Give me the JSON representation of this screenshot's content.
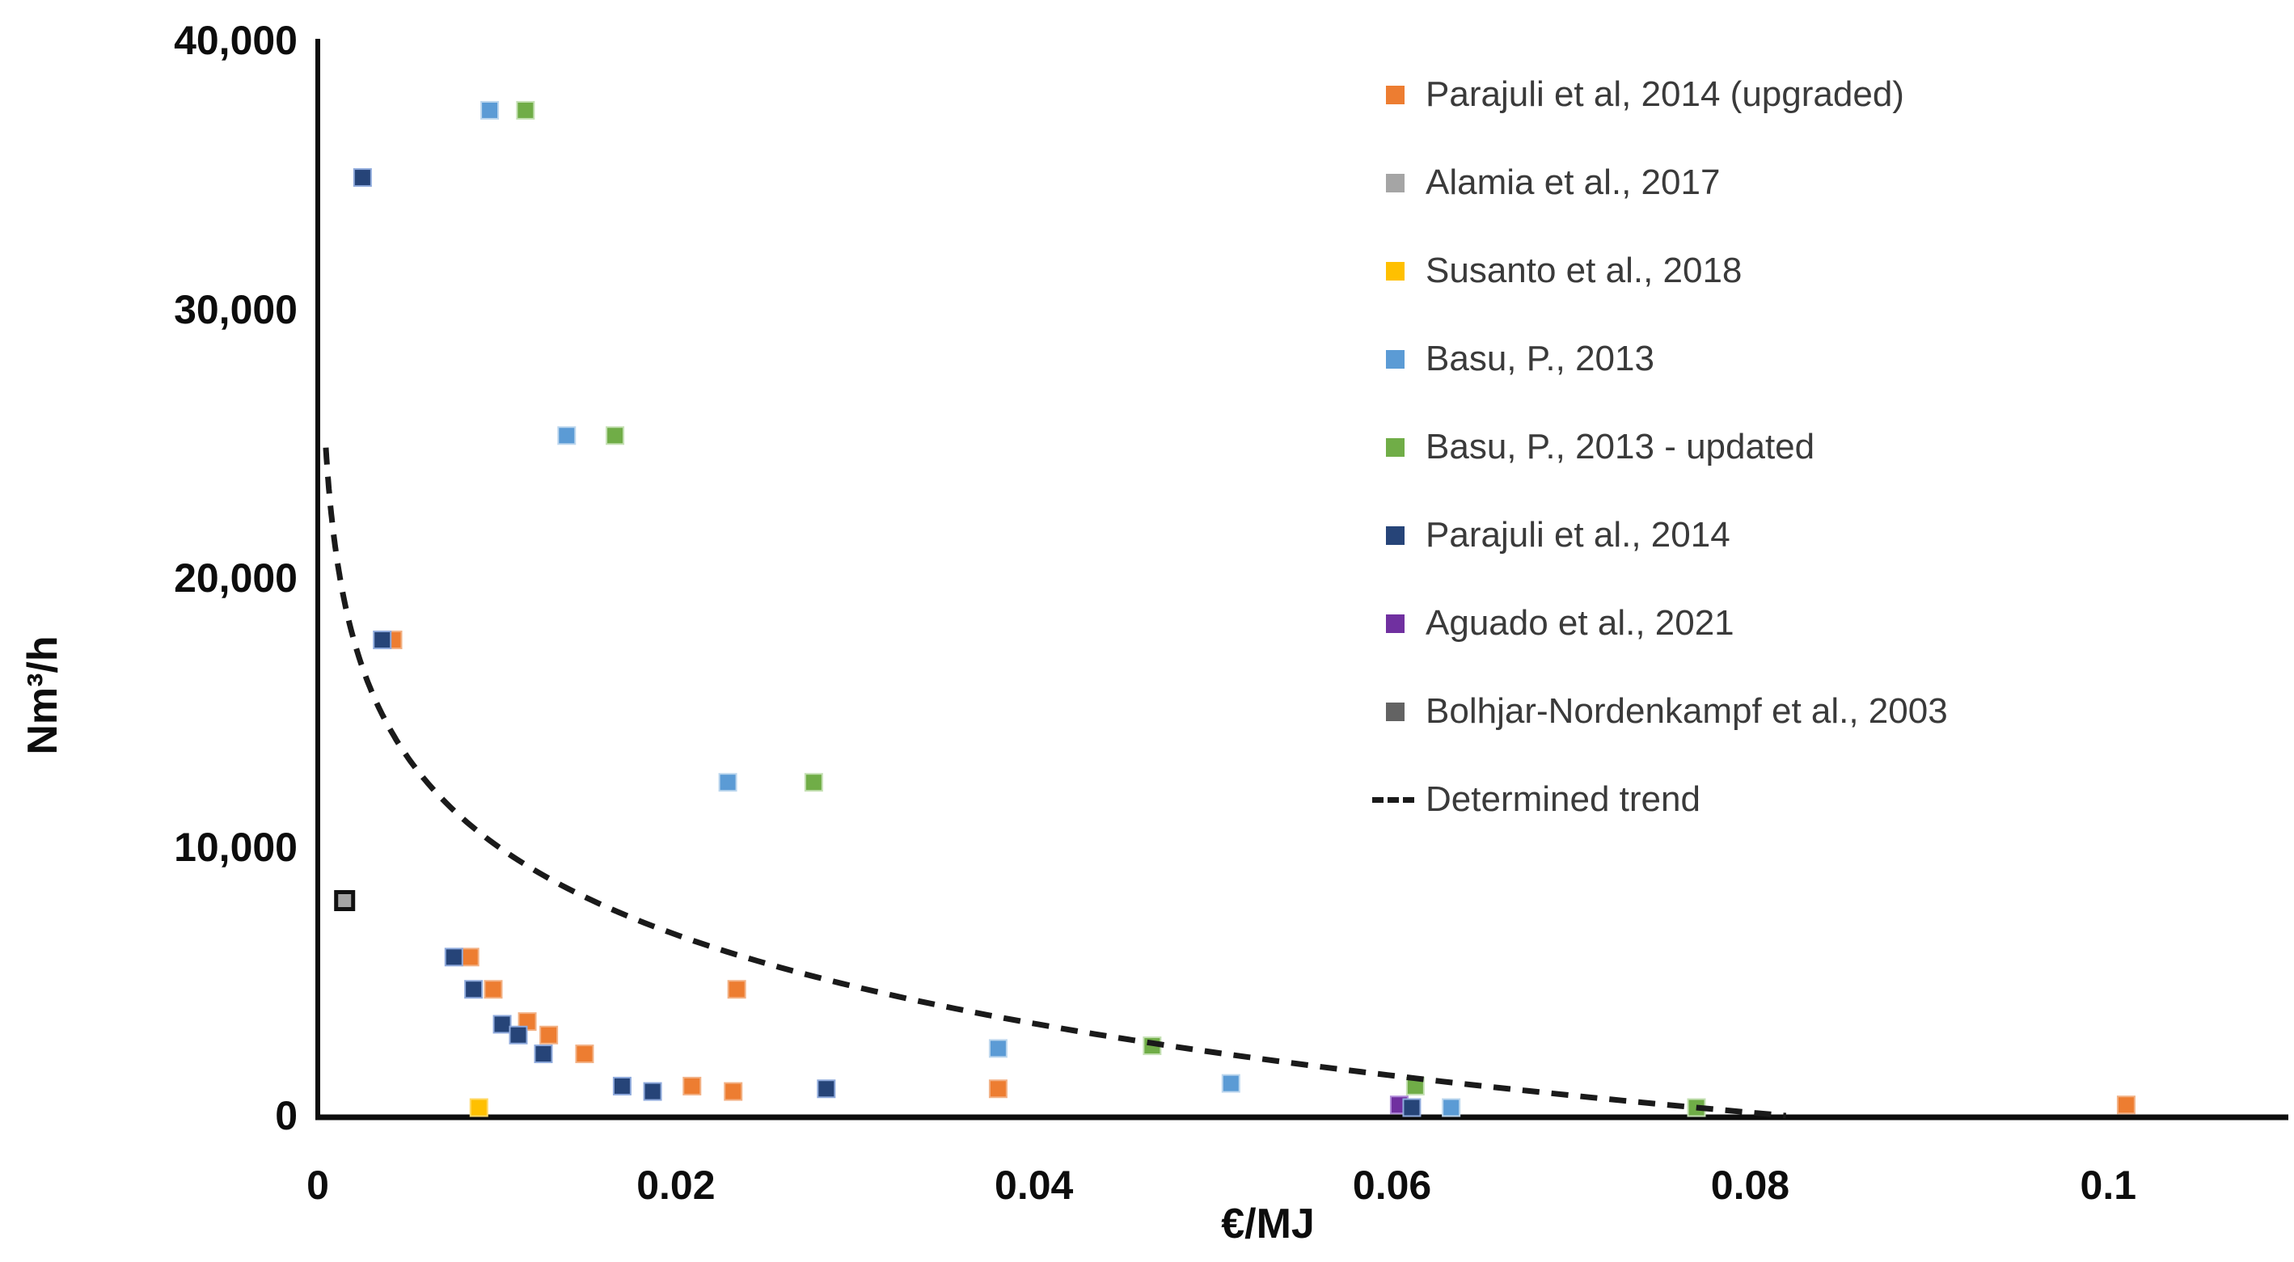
{
  "chart_data": {
    "type": "scatter",
    "title": "",
    "xlabel": "€/MJ",
    "ylabel": "Nm³/h",
    "xlim": [
      0,
      0.11
    ],
    "ylim": [
      0,
      40000
    ],
    "grid": false,
    "legend_position": "right",
    "x_ticks": [
      0,
      0.02,
      0.04,
      0.06,
      0.08,
      0.1
    ],
    "x_tick_labels": [
      "0",
      "0.02",
      "0.04",
      "0.06",
      "0.08",
      "0.1"
    ],
    "y_ticks": [
      0,
      10000,
      20000,
      30000,
      40000
    ],
    "y_tick_labels": [
      "0",
      "10,000",
      "20,000",
      "30,000",
      "40,000"
    ],
    "series": [
      {
        "name": "Parajuli et al, 2014 (upgraded)",
        "color": "#ED7D31",
        "edge": "#f2b185",
        "edge_width": 2,
        "points": [
          [
            0.0042,
            17700
          ],
          [
            0.0085,
            5900
          ],
          [
            0.0098,
            4700
          ],
          [
            0.0117,
            3500
          ],
          [
            0.0129,
            3000
          ],
          [
            0.0149,
            2300
          ],
          [
            0.0209,
            1100
          ],
          [
            0.0232,
            900
          ],
          [
            0.0234,
            4700
          ],
          [
            0.038,
            1000
          ],
          [
            0.101,
            400
          ]
        ]
      },
      {
        "name": "Alamia et al., 2017",
        "color": "#A5A5A5",
        "edge": "#111111",
        "edge_width": 5,
        "points": [
          [
            0.0015,
            8000
          ]
        ]
      },
      {
        "name": "Susanto et al., 2018",
        "color": "#FFC000",
        "edge": "#ffd966",
        "edge_width": 2,
        "points": [
          [
            0.009,
            300
          ]
        ]
      },
      {
        "name": "Basu, P., 2013",
        "color": "#5B9BD5",
        "edge": "#bdd7ee",
        "edge_width": 2,
        "points": [
          [
            0.0096,
            37400
          ],
          [
            0.0139,
            25300
          ],
          [
            0.0229,
            12400
          ],
          [
            0.038,
            2500
          ],
          [
            0.051,
            1200
          ],
          [
            0.0633,
            300
          ]
        ]
      },
      {
        "name": "Basu, P., 2013 - updated",
        "color": "#70AD47",
        "edge": "#c5e0b4",
        "edge_width": 2,
        "points": [
          [
            0.0116,
            37400
          ],
          [
            0.0166,
            25300
          ],
          [
            0.0277,
            12400
          ],
          [
            0.0466,
            2600
          ],
          [
            0.0613,
            1100
          ],
          [
            0.077,
            300
          ]
        ]
      },
      {
        "name": "Parajuli et al., 2014",
        "color": "#264478",
        "edge": "#8faadc",
        "edge_width": 2,
        "points": [
          [
            0.0025,
            34900
          ],
          [
            0.0036,
            17700
          ],
          [
            0.0076,
            5900
          ],
          [
            0.0087,
            4700
          ],
          [
            0.0103,
            3400
          ],
          [
            0.0112,
            3000
          ],
          [
            0.0126,
            2300
          ],
          [
            0.017,
            1100
          ],
          [
            0.0187,
            900
          ],
          [
            0.0284,
            1000
          ],
          [
            0.0611,
            300
          ]
        ]
      },
      {
        "name": "Aguado et al., 2021",
        "color": "#7030A0",
        "edge": "#b18cd9",
        "edge_width": 2,
        "points": [
          [
            0.0604,
            400
          ]
        ]
      },
      {
        "name": "Bolhjar-Nordenkampf et al., 2003",
        "color": "#636363",
        "edge": "#3a3a3a",
        "edge_width": 2,
        "points": [
          [
            0.0015,
            8000
          ]
        ]
      }
    ],
    "trend": {
      "name": "Determined trend",
      "style": "dashed",
      "color": "#1a1a1a",
      "equation": "y = -4774*ln(x) - 11940",
      "a": -4774,
      "b": -11940,
      "x_start": 0.00045,
      "x_end": 0.082
    }
  },
  "colors": {
    "background": "#ffffff",
    "axis": "#0d0d0d",
    "tick_text": "#0d0d0d",
    "legend_text": "#3a3a3a"
  }
}
